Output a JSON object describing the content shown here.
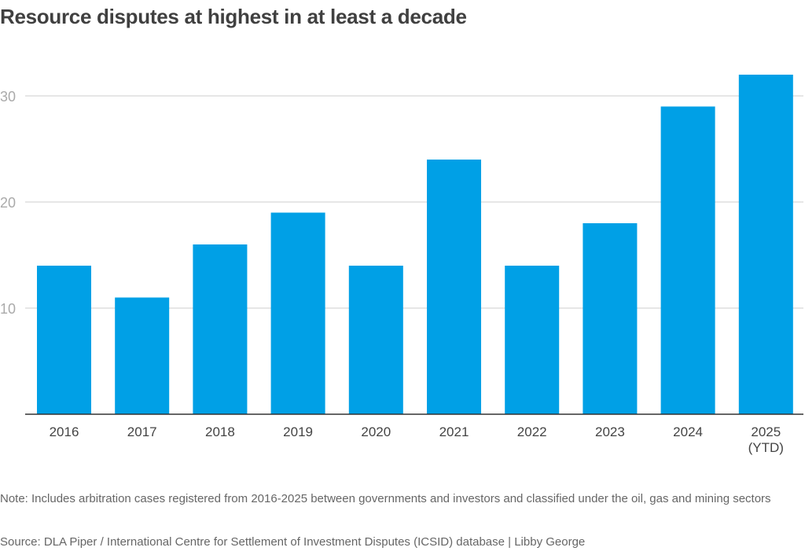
{
  "title": "Resource disputes at highest in at least a decade",
  "note": "Note: Includes arbitration cases registered from 2016-2025 between governments and investors and classified under the oil, gas and mining sectors",
  "source": "Source: DLA Piper / International Centre for Settlement of Investment Disputes (ICSID) database | Libby George",
  "chart_data": {
    "type": "bar",
    "title": "Resource disputes at highest in at least a decade",
    "categories": [
      [
        "2016"
      ],
      [
        "2017"
      ],
      [
        "2018"
      ],
      [
        "2019"
      ],
      [
        "2020"
      ],
      [
        "2021"
      ],
      [
        "2022"
      ],
      [
        "2023"
      ],
      [
        "2024"
      ],
      [
        "2025",
        "(YTD)"
      ]
    ],
    "values": [
      14,
      11,
      16,
      19,
      14,
      24,
      14,
      18,
      29,
      32
    ],
    "xlabel": "",
    "ylabel": "",
    "ylim": [
      0,
      32
    ],
    "yticks": [
      10,
      20,
      30
    ],
    "grid": true,
    "bar_color": "#00a0e6",
    "gridline_color": "#cccccc",
    "axis_color": "#333333"
  }
}
